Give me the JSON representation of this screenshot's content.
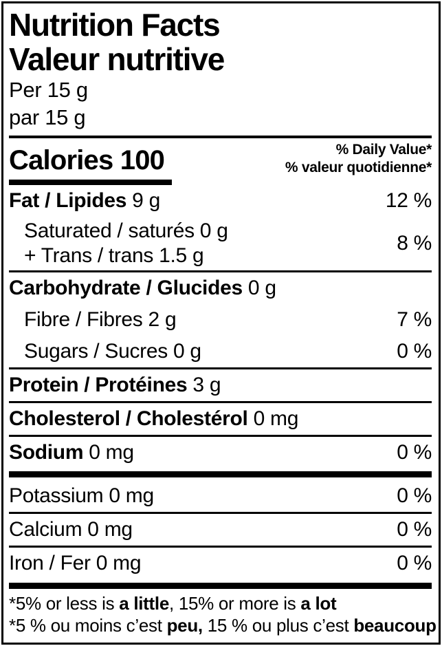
{
  "colors": {
    "text": "#000000",
    "background": "#ffffff"
  },
  "header": {
    "title_en": "Nutrition Facts",
    "title_fr": "Valeur nutritive",
    "serving_en": "Per 15 g",
    "serving_fr": "par 15 g"
  },
  "calories": {
    "label": "Calories",
    "value": "100",
    "daily_value_en": "% Daily Value*",
    "daily_value_fr": "% valeur quotidienne*"
  },
  "nutrients": {
    "fat": {
      "name": "Fat / Lipides",
      "amount": "9 g",
      "dv": "12 %"
    },
    "sat_trans": {
      "line1": "Saturated / saturés 0 g",
      "line2": "+ Trans / trans 1.5 g",
      "dv": "8 %"
    },
    "carbohydrate": {
      "name": "Carbohydrate / Glucides",
      "amount": "0 g"
    },
    "fibre": {
      "name": "Fibre / Fibres 2 g",
      "dv": "7 %"
    },
    "sugars": {
      "name": "Sugars / Sucres 0 g",
      "dv": "0 %"
    },
    "protein": {
      "name": "Protein / Protéines",
      "amount": "3 g"
    },
    "cholesterol": {
      "name": "Cholesterol / Cholestérol",
      "amount": "0 mg"
    },
    "sodium": {
      "name": "Sodium",
      "amount": "0 mg",
      "dv": "0 %"
    },
    "potassium": {
      "name": "Potassium 0 mg",
      "dv": "0 %"
    },
    "calcium": {
      "name": "Calcium 0 mg",
      "dv": "0 %"
    },
    "iron": {
      "name": "Iron / Fer 0 mg",
      "dv": "0 %"
    }
  },
  "footnotes": {
    "en": {
      "pre": "*5% or less is",
      "bold1": "a little",
      "mid": ", 15% or more is",
      "bold2": "a lot"
    },
    "fr": {
      "pre": "*5 % ou moins c’est",
      "bold1": "peu,",
      "mid": "15 % ou plus c’est",
      "bold2": "beaucoup"
    }
  }
}
